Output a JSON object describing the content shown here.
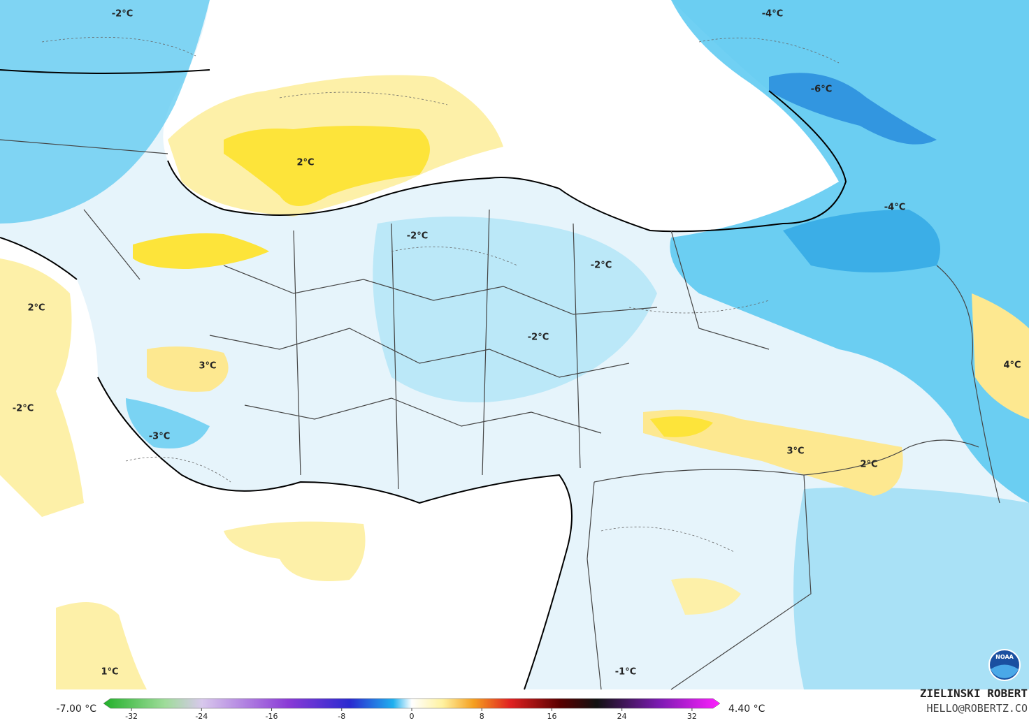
{
  "map": {
    "contour_labels": [
      "-2°C",
      "-4°C",
      "-6°C",
      "2°C",
      "-4°C",
      "-2°C",
      "-2°C",
      "2°C",
      "-2°C",
      "3°C",
      "4°C",
      "-2°C",
      "-3°C",
      "3°C",
      "2°C",
      "1°C",
      "-1°C"
    ],
    "colorbar": {
      "min_label": "-7.00 °C",
      "max_label": "4.40 °C",
      "lim": [
        -35.2,
        35.2
      ],
      "ticks": [
        -32,
        -24,
        -16,
        -8,
        0,
        8,
        16,
        24,
        32
      ]
    },
    "credit": {
      "author": "ZIELINSKI ROBERT",
      "email": "HELLO@ROBERTZ.CO",
      "logo": "NOAA"
    }
  }
}
